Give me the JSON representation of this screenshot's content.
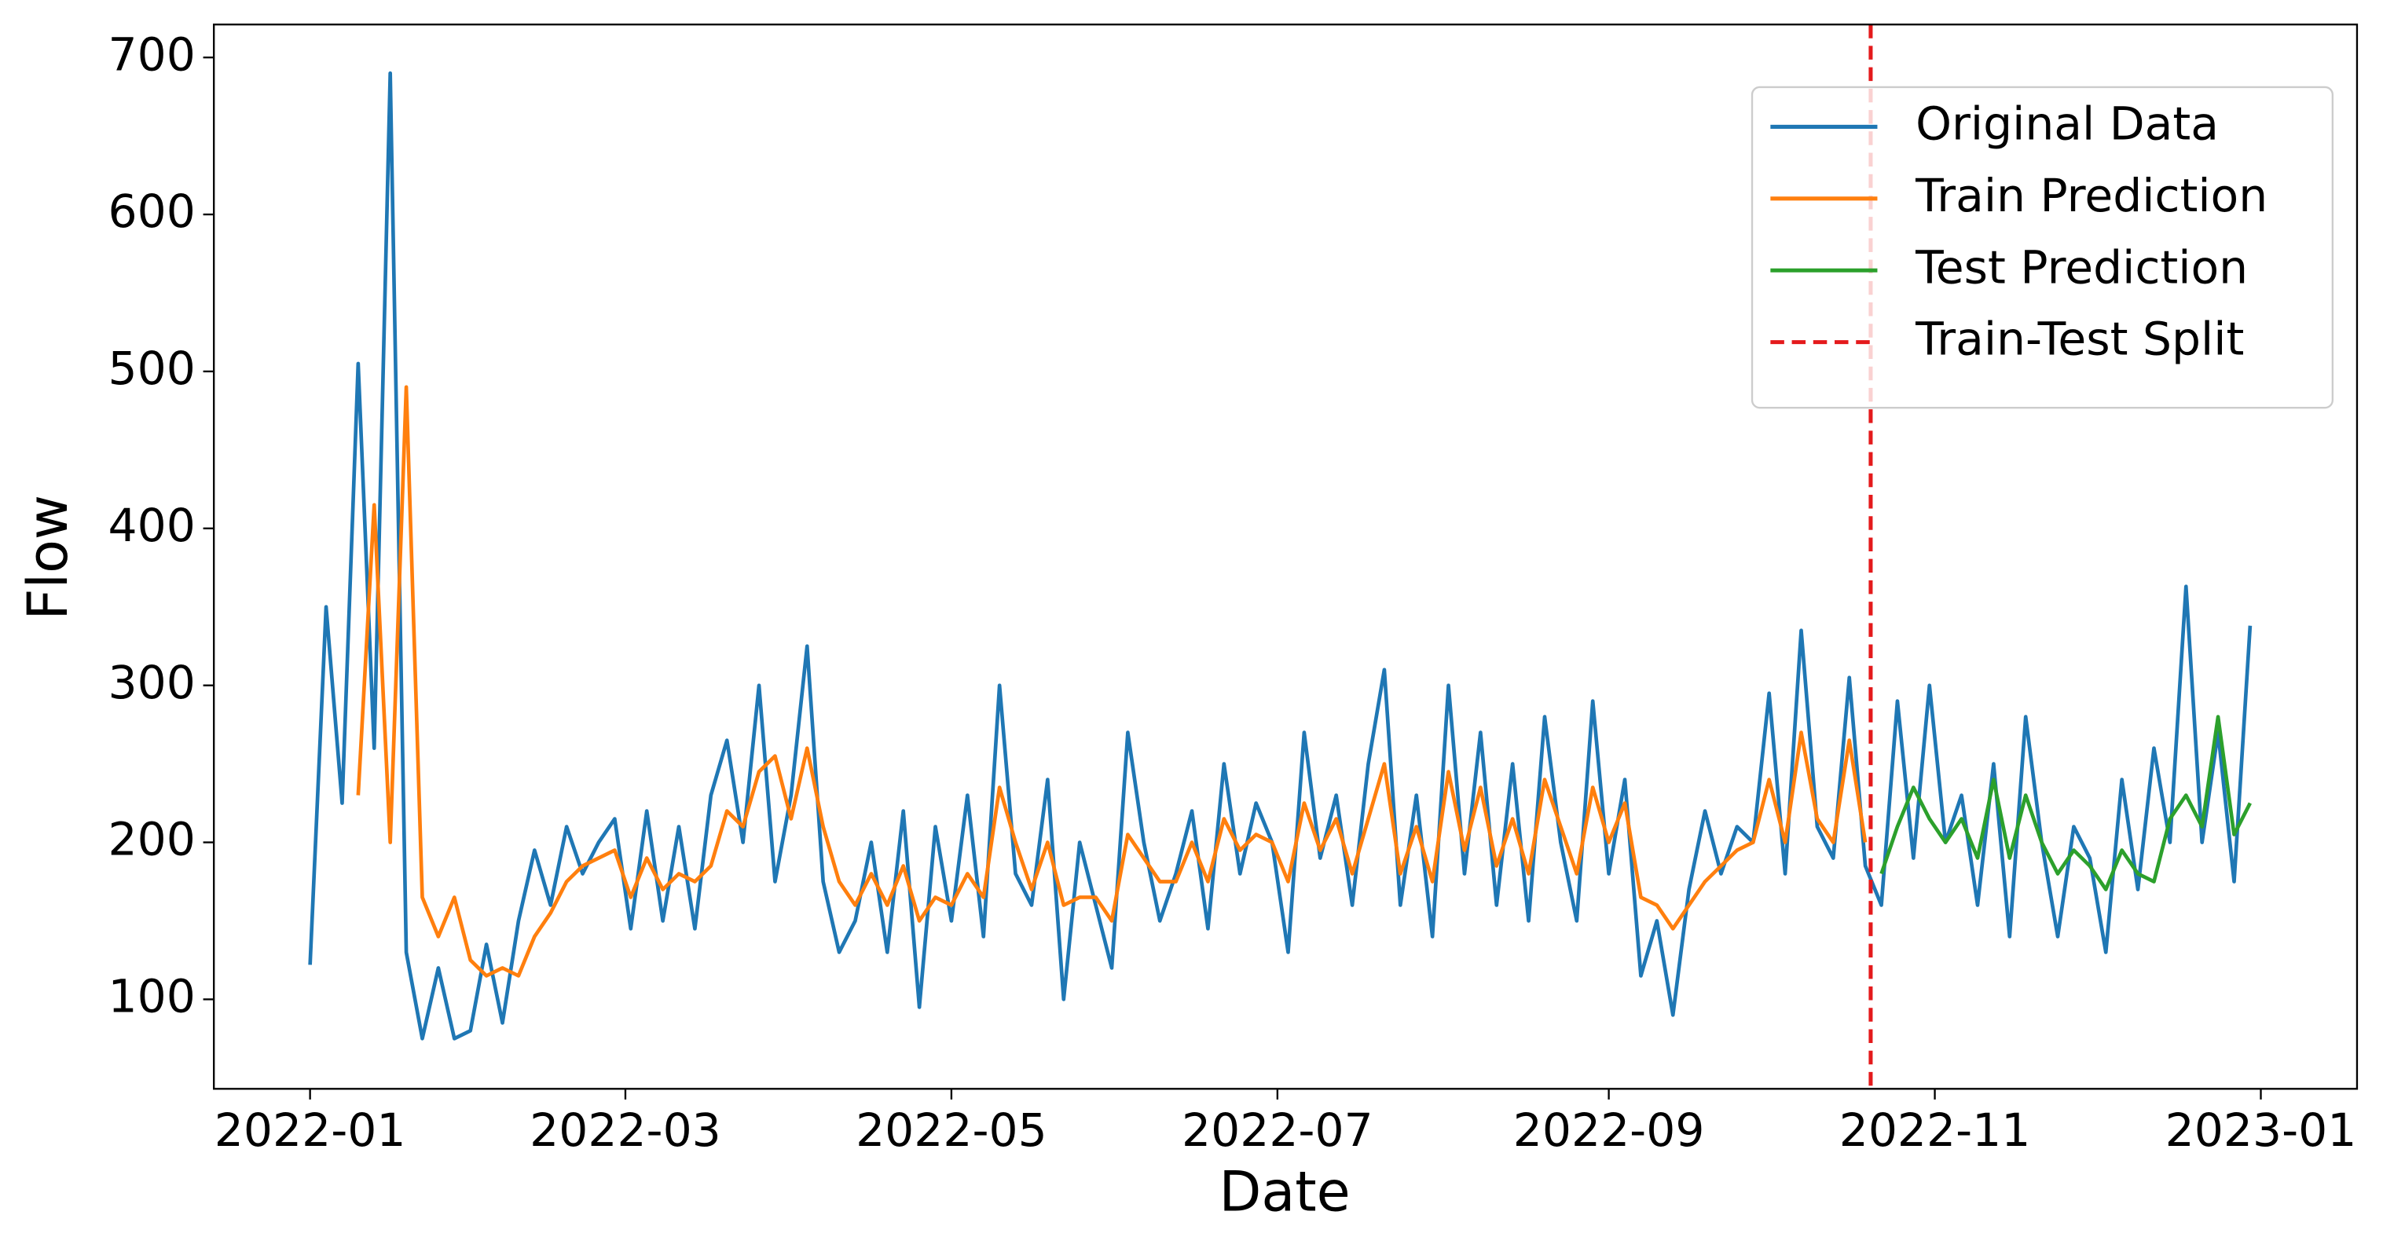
{
  "chart_data": {
    "type": "line",
    "x_label": "Date",
    "y_label": "Flow",
    "x": [
      0,
      3,
      6,
      9,
      12,
      15,
      18,
      21,
      24,
      27,
      30,
      33,
      36,
      39,
      42,
      45,
      48,
      51,
      54,
      57,
      60,
      63,
      66,
      69,
      72,
      75,
      78,
      81,
      84,
      87,
      90,
      93,
      96,
      99,
      102,
      105,
      108,
      111,
      114,
      117,
      120,
      123,
      126,
      129,
      132,
      135,
      138,
      141,
      144,
      147,
      150,
      153,
      156,
      159,
      162,
      165,
      168,
      171,
      174,
      177,
      180,
      183,
      186,
      189,
      192,
      195,
      198,
      201,
      204,
      207,
      210,
      213,
      216,
      219,
      222,
      225,
      228,
      231,
      234,
      237,
      240,
      243,
      246,
      249,
      252,
      255,
      258,
      261,
      264,
      267,
      270,
      273,
      276,
      279,
      282,
      285,
      288,
      291,
      294,
      297,
      300,
      303,
      306,
      309,
      312,
      315,
      318,
      321,
      324,
      327,
      330,
      333,
      336,
      339,
      342,
      345,
      348,
      351,
      354,
      357,
      360,
      363
    ],
    "xlim": [
      -18,
      383
    ],
    "xticks": [
      {
        "value": 0,
        "label": "2022-01"
      },
      {
        "value": 59,
        "label": "2022-03"
      },
      {
        "value": 120,
        "label": "2022-05"
      },
      {
        "value": 181,
        "label": "2022-07"
      },
      {
        "value": 243,
        "label": "2022-09"
      },
      {
        "value": 304,
        "label": "2022-11"
      },
      {
        "value": 365,
        "label": "2023-01"
      }
    ],
    "ylim": [
      43,
      721
    ],
    "yticks": [
      100,
      200,
      300,
      400,
      500,
      600,
      700
    ],
    "legend": "upper right",
    "series": [
      {
        "name": "Original Data",
        "color": "#1f77b4",
        "values": [
          122,
          350,
          225,
          505,
          260,
          690,
          130,
          75,
          120,
          75,
          80,
          135,
          85,
          150,
          195,
          160,
          210,
          180,
          200,
          215,
          145,
          220,
          150,
          210,
          145,
          230,
          265,
          200,
          300,
          175,
          230,
          325,
          175,
          130,
          150,
          200,
          130,
          220,
          95,
          210,
          150,
          230,
          140,
          300,
          180,
          160,
          240,
          100,
          200,
          160,
          120,
          270,
          200,
          150,
          180,
          220,
          145,
          250,
          180,
          225,
          200,
          130,
          270,
          190,
          230,
          160,
          250,
          310,
          160,
          230,
          140,
          300,
          180,
          270,
          160,
          250,
          150,
          280,
          200,
          150,
          290,
          180,
          240,
          115,
          150,
          90,
          170,
          220,
          180,
          210,
          200,
          295,
          180,
          335,
          210,
          190,
          305,
          185,
          160,
          290,
          190,
          300,
          200,
          230,
          160,
          250,
          140,
          280,
          200,
          140,
          210,
          190,
          130,
          240,
          170,
          260,
          200,
          363,
          200,
          270,
          175,
          338
        ]
      },
      {
        "name": "Train Prediction",
        "color": "#ff7f0e",
        "values": [
          null,
          null,
          null,
          230,
          415,
          200,
          490,
          165,
          140,
          165,
          125,
          115,
          120,
          115,
          140,
          155,
          175,
          185,
          190,
          195,
          165,
          190,
          170,
          180,
          175,
          185,
          220,
          210,
          245,
          255,
          215,
          260,
          210,
          175,
          160,
          180,
          160,
          185,
          150,
          165,
          160,
          180,
          165,
          235,
          200,
          170,
          200,
          160,
          165,
          165,
          150,
          205,
          190,
          175,
          175,
          200,
          175,
          215,
          195,
          205,
          200,
          175,
          225,
          195,
          215,
          180,
          215,
          250,
          180,
          210,
          175,
          245,
          195,
          235,
          185,
          215,
          180,
          240,
          210,
          180,
          235,
          200,
          225,
          165,
          160,
          145,
          160,
          175,
          185,
          195,
          200,
          240,
          200,
          270,
          215,
          200,
          265,
          200,
          null,
          null,
          null,
          null,
          null,
          null,
          null,
          null,
          null,
          null,
          null,
          null,
          null,
          null,
          null,
          null,
          null,
          null,
          null,
          null,
          null,
          null,
          null,
          null
        ]
      },
      {
        "name": "Test Prediction",
        "color": "#2ca02c",
        "values": [
          null,
          null,
          null,
          null,
          null,
          null,
          null,
          null,
          null,
          null,
          null,
          null,
          null,
          null,
          null,
          null,
          null,
          null,
          null,
          null,
          null,
          null,
          null,
          null,
          null,
          null,
          null,
          null,
          null,
          null,
          null,
          null,
          null,
          null,
          null,
          null,
          null,
          null,
          null,
          null,
          null,
          null,
          null,
          null,
          null,
          null,
          null,
          null,
          null,
          null,
          null,
          null,
          null,
          null,
          null,
          null,
          null,
          null,
          null,
          null,
          null,
          null,
          null,
          null,
          null,
          null,
          null,
          null,
          null,
          null,
          null,
          null,
          null,
          null,
          null,
          null,
          null,
          null,
          null,
          null,
          null,
          null,
          null,
          null,
          null,
          null,
          null,
          null,
          null,
          null,
          null,
          null,
          null,
          null,
          null,
          null,
          null,
          null,
          180,
          210,
          235,
          215,
          200,
          215,
          190,
          240,
          190,
          230,
          200,
          180,
          195,
          185,
          170,
          195,
          180,
          175,
          215,
          230,
          210,
          280,
          205,
          225
        ]
      }
    ],
    "split": {
      "name": "Train-Test Split",
      "color": "#e41a1c",
      "x": 292
    }
  }
}
